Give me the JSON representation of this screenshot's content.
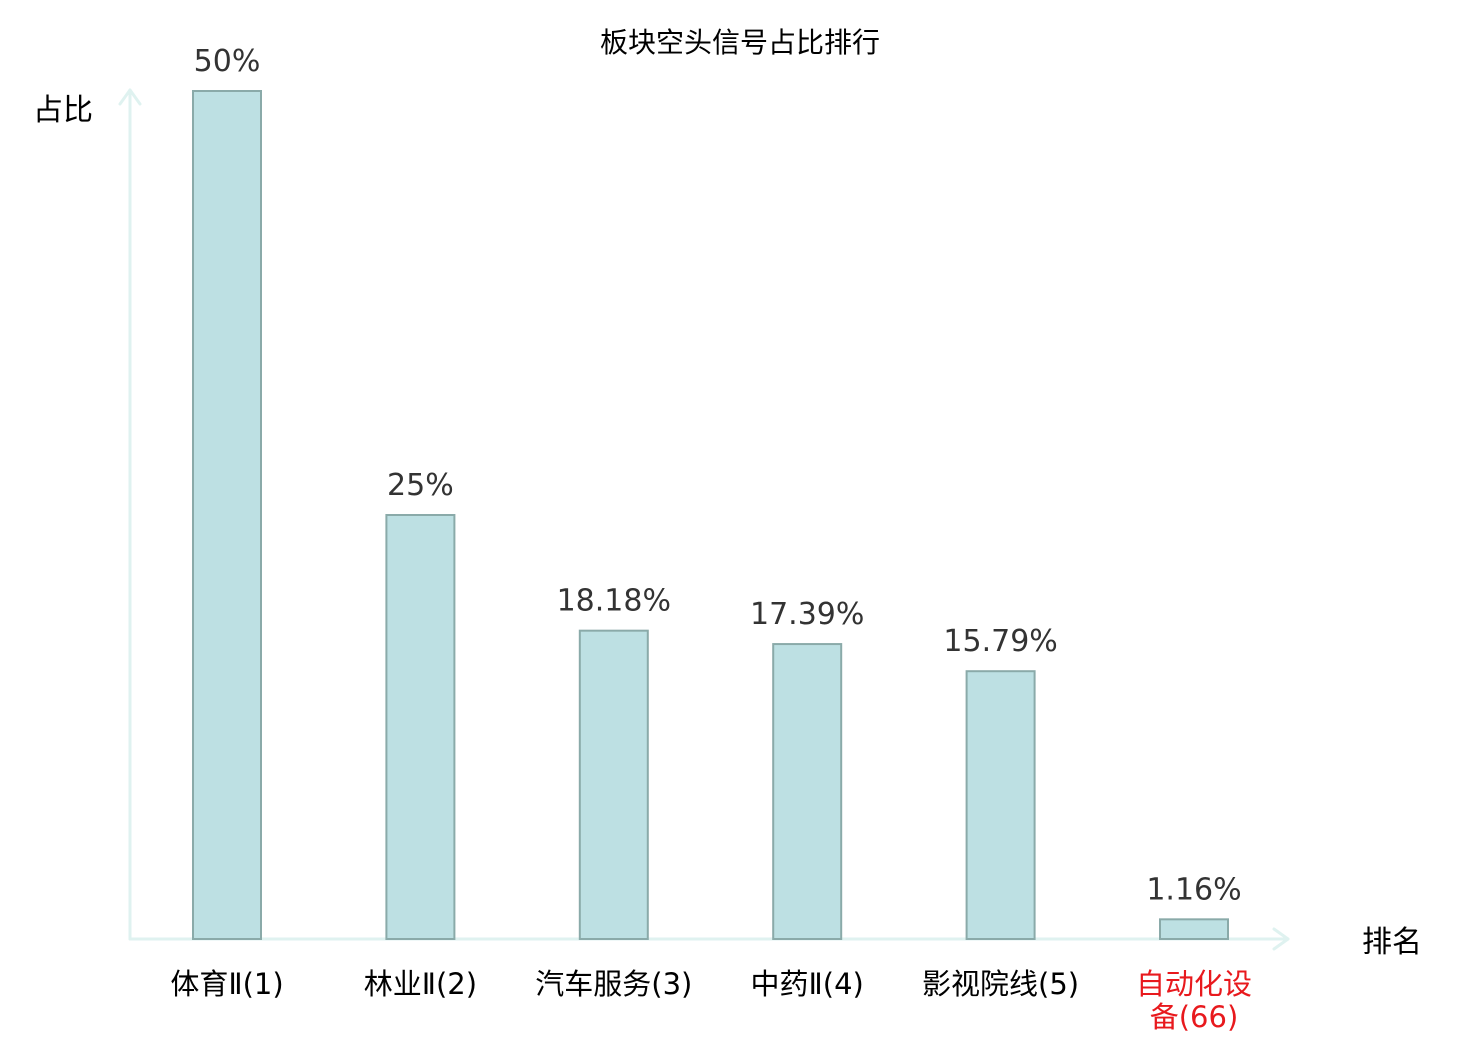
{
  "chart_data": {
    "type": "bar",
    "title": "板块空头信号占比排行",
    "xlabel": "排名",
    "ylabel": "占比",
    "categories": [
      "体育Ⅱ(1)",
      "林业Ⅱ(2)",
      "汽车服务(3)",
      "中药Ⅱ(4)",
      "影视院线(5)",
      "自动化设备(66)"
    ],
    "category_lines": [
      [
        "体育Ⅱ(1)"
      ],
      [
        "林业Ⅱ(2)"
      ],
      [
        "汽车服务(3)"
      ],
      [
        "中药Ⅱ(4)"
      ],
      [
        "影视院线(5)"
      ],
      [
        "自动化设",
        "备(66)"
      ]
    ],
    "values": [
      50,
      25,
      18.18,
      17.39,
      15.79,
      1.16
    ],
    "value_labels": [
      "50%",
      "25%",
      "18.18%",
      "17.39%",
      "15.79%",
      "1.16%"
    ],
    "highlighted_index": 5,
    "ylim": [
      0,
      50
    ],
    "grid": false,
    "legend": "none",
    "colors": {
      "bar_fill": "#bde0e3",
      "bar_stroke": "#8aaaa9",
      "axis": "#dff2f0",
      "text": "#000000",
      "value_text": "#333333",
      "highlight": "#e8191d"
    }
  }
}
